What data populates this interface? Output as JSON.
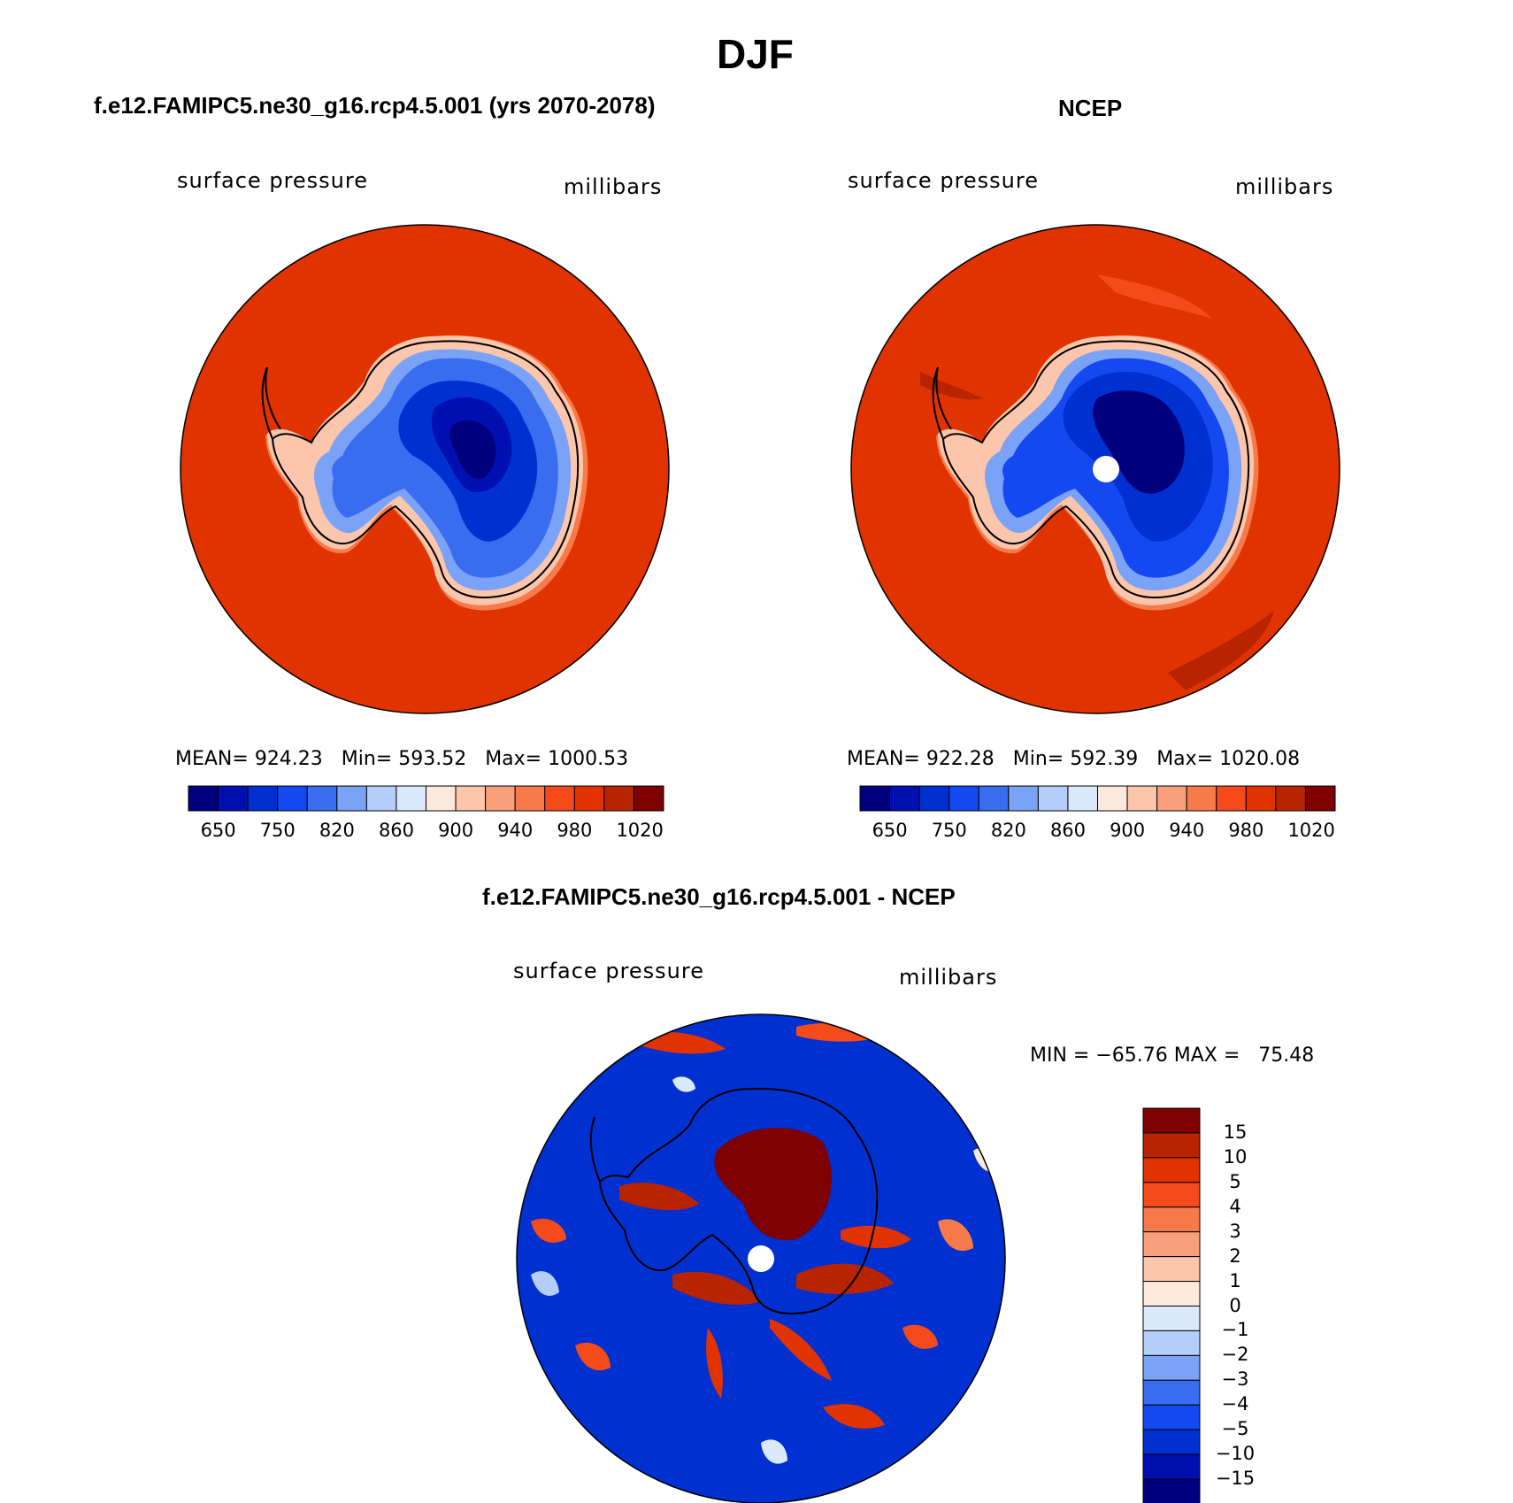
{
  "figure": {
    "title": "DJF"
  },
  "colors": {
    "hcbar": [
      "#00007f",
      "#0010b0",
      "#0030d0",
      "#1448f0",
      "#3a6cf0",
      "#7aa2f6",
      "#b4cef9",
      "#dbe9fc",
      "#fde9db",
      "#fbc6ac",
      "#f9a07a",
      "#f77a4a",
      "#f54a1a",
      "#e13300",
      "#b82400",
      "#7f0000"
    ],
    "vcbar": [
      "#7f0000",
      "#b82400",
      "#e13300",
      "#f54a1a",
      "#f77a4a",
      "#f9a07a",
      "#fbc6ac",
      "#fde9db",
      "#dbe9fc",
      "#b4cef9",
      "#7aa2f6",
      "#3a6cf0",
      "#1448f0",
      "#0030d0",
      "#0010b0",
      "#00007f"
    ],
    "ocean_red": "#e13300",
    "land_darkblue": "#00007f",
    "land_blue": "#1448f0"
  },
  "panels": {
    "model": {
      "title": "f.e12.FAMIPC5.ne30_g16.rcp4.5.001 (yrs 2070-2078)",
      "variable": "surface pressure",
      "units": "millibars",
      "stats": "MEAN= 924.23   Min= 593.52   Max= 1000.53",
      "colorbar_ticks": [
        "650",
        "750",
        "820",
        "860",
        "900",
        "940",
        "980",
        "1020"
      ]
    },
    "obs": {
      "title": "NCEP",
      "variable": "surface pressure",
      "units": "millibars",
      "stats": "MEAN= 922.28   Min= 592.39   Max= 1020.08",
      "colorbar_ticks": [
        "650",
        "750",
        "820",
        "860",
        "900",
        "940",
        "980",
        "1020"
      ]
    },
    "diff": {
      "title": "f.e12.FAMIPC5.ne30_g16.rcp4.5.001 - NCEP",
      "variable": "surface pressure",
      "units": "millibars",
      "stats": "MIN = −65.76 MAX =   75.48",
      "colorbar_ticks": [
        "15",
        "10",
        "5",
        "4",
        "3",
        "2",
        "1",
        "0",
        "−1",
        "−2",
        "−3",
        "−4",
        "−5",
        "−10",
        "−15"
      ]
    }
  }
}
